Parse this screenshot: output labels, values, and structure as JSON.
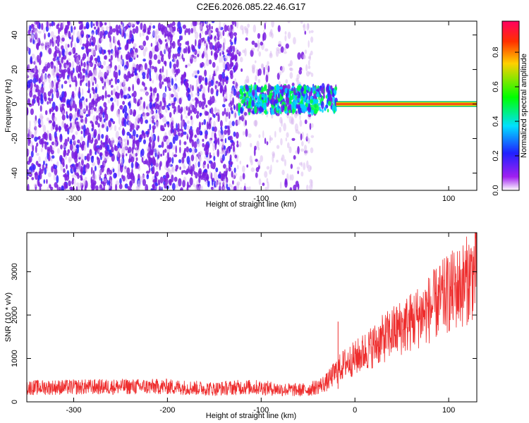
{
  "chart_data": [
    {
      "type": "heatmap",
      "title": "C2E6.2026.085.22.46.G17",
      "xlabel": "Height of straight line (km)",
      "ylabel": "Frequency (Hz)",
      "xlim": [
        -350,
        130
      ],
      "ylim": [
        -50,
        48
      ],
      "x_ticks": [
        -300,
        -200,
        -100,
        0,
        100
      ],
      "x_tick_labels": [
        "-300",
        "-200",
        "-100",
        "0",
        "100"
      ],
      "y_ticks": [
        -40,
        -20,
        0,
        20,
        40
      ],
      "y_tick_labels": [
        "-40",
        "-20",
        "0",
        "20",
        "40"
      ],
      "colorbar": {
        "label": "Normalized spectral amplitude",
        "range": [
          0,
          0.98
        ],
        "ticks": [
          0.0,
          0.2,
          0.4,
          0.6,
          0.8
        ],
        "tick_labels": [
          "0.0",
          "0.2",
          "0.4",
          "0.6",
          "0.8"
        ],
        "colormap": "rainbow"
      },
      "features": [
        {
          "description": "low-amplitude noise band",
          "x_range": [
            -350,
            -125
          ],
          "freq_range": [
            -50,
            48
          ],
          "amplitude": 0.15
        },
        {
          "description": "sparse noise fading",
          "x_range": [
            -125,
            -45
          ],
          "freq_range": [
            -50,
            48
          ],
          "amplitude": 0.08
        },
        {
          "description": "emerging signal",
          "x_range": [
            -125,
            -20
          ],
          "freq_range": [
            -5,
            10
          ],
          "amplitude": 0.4
        },
        {
          "description": "strong carrier line",
          "x_range": [
            -20,
            130
          ],
          "freq_range": [
            -1,
            1
          ],
          "amplitude": 0.95
        }
      ]
    },
    {
      "type": "line",
      "title": "",
      "xlabel": "Height of straight line (km)",
      "ylabel": "SNR (10 * v/v)",
      "xlim": [
        -350,
        130
      ],
      "ylim": [
        0,
        3900
      ],
      "x_ticks": [
        -300,
        -200,
        -100,
        0,
        100
      ],
      "x_tick_labels": [
        "-300",
        "-200",
        "-100",
        "0",
        "100"
      ],
      "y_ticks": [
        0,
        1000,
        2000,
        3000
      ],
      "y_tick_labels": [
        "0",
        "1000",
        "2000",
        "3000"
      ],
      "series": [
        {
          "color": "#ee2c2c",
          "x": [
            -350,
            -300,
            -250,
            -200,
            -150,
            -120,
            -100,
            -80,
            -60,
            -50,
            -40,
            -30,
            -20,
            -10,
            0,
            20,
            40,
            60,
            80,
            100,
            115,
            130
          ],
          "y": [
            330,
            340,
            350,
            350,
            300,
            340,
            330,
            290,
            270,
            280,
            350,
            450,
            700,
            900,
            1000,
            1300,
            1600,
            1850,
            2150,
            2500,
            2700,
            3050
          ]
        }
      ]
    }
  ]
}
